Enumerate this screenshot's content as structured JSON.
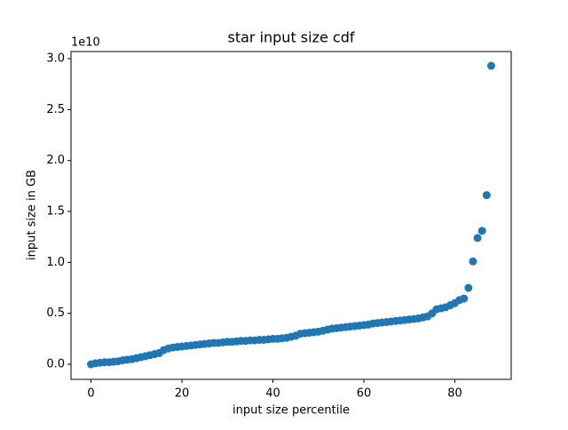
{
  "chart_data": {
    "type": "scatter",
    "title": "star input size cdf",
    "x_label": "input size percentile",
    "y_label": "input size in GB",
    "y_offset_label": "1e10",
    "x": [
      0,
      1,
      2,
      3,
      4,
      5,
      6,
      7,
      8,
      9,
      10,
      11,
      12,
      13,
      14,
      15,
      16,
      17,
      18,
      19,
      20,
      21,
      22,
      23,
      24,
      25,
      26,
      27,
      28,
      29,
      30,
      31,
      32,
      33,
      34,
      35,
      36,
      37,
      38,
      39,
      40,
      41,
      42,
      43,
      44,
      45,
      46,
      47,
      48,
      49,
      50,
      51,
      52,
      53,
      54,
      55,
      56,
      57,
      58,
      59,
      60,
      61,
      62,
      63,
      64,
      65,
      66,
      67,
      68,
      69,
      70,
      71,
      72,
      73,
      74,
      75,
      76,
      77,
      78,
      79,
      80,
      81,
      82,
      83,
      84,
      85,
      86,
      87,
      88
    ],
    "series": [
      {
        "color": "#1f77b4",
        "values": [
          0.0,
          0.01,
          0.015,
          0.02,
          0.02,
          0.025,
          0.03,
          0.04,
          0.045,
          0.05,
          0.06,
          0.07,
          0.08,
          0.09,
          0.1,
          0.11,
          0.14,
          0.155,
          0.165,
          0.17,
          0.175,
          0.18,
          0.185,
          0.19,
          0.195,
          0.2,
          0.205,
          0.21,
          0.21,
          0.215,
          0.22,
          0.22,
          0.225,
          0.23,
          0.23,
          0.235,
          0.235,
          0.24,
          0.24,
          0.245,
          0.25,
          0.25,
          0.255,
          0.26,
          0.27,
          0.28,
          0.3,
          0.305,
          0.31,
          0.315,
          0.32,
          0.33,
          0.34,
          0.35,
          0.355,
          0.36,
          0.365,
          0.37,
          0.375,
          0.38,
          0.385,
          0.39,
          0.4,
          0.405,
          0.41,
          0.415,
          0.42,
          0.425,
          0.43,
          0.435,
          0.44,
          0.445,
          0.45,
          0.46,
          0.47,
          0.5,
          0.54,
          0.55,
          0.56,
          0.58,
          0.6,
          0.63,
          0.645,
          0.75,
          1.01,
          1.24,
          1.31,
          1.66,
          2.93
        ]
      }
    ],
    "xlim": [
      -4.4,
      92.4
    ],
    "ylim": [
      -0.148,
      3.07
    ],
    "xticks": [
      0,
      20,
      40,
      60,
      80
    ],
    "yticks": [
      {
        "value": 0,
        "label": "0.0"
      },
      0.5,
      {
        "value": 1,
        "label": "1.0"
      },
      1.5,
      {
        "value": 2,
        "label": "2.0"
      },
      2.5,
      {
        "value": 3,
        "label": "3.0"
      }
    ],
    "grid": false
  }
}
